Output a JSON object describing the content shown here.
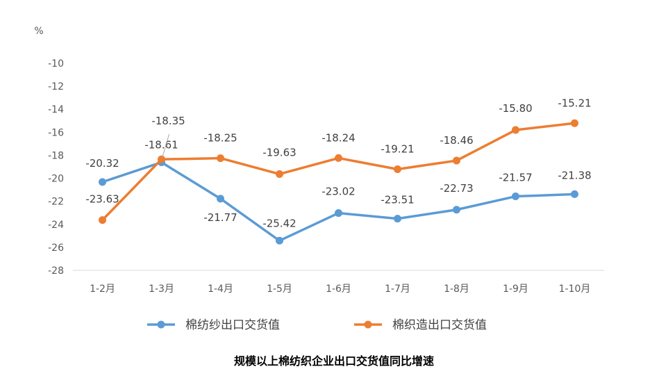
{
  "chart_data": {
    "type": "line",
    "title": "规模以上棉纺织企业出口交货值同比增速",
    "ylabel": "%",
    "xlabel": "",
    "categories": [
      "1-2月",
      "1-3月",
      "1-4月",
      "1-5月",
      "1-6月",
      "1-7月",
      "1-8月",
      "1-9月",
      "1-10月"
    ],
    "ylim": [
      -28,
      -10
    ],
    "yticks": [
      -10,
      -12,
      -14,
      -16,
      -18,
      -20,
      -22,
      -24,
      -26,
      -28
    ],
    "ytick_labels": [
      "-10",
      "-12",
      "-14",
      "-16",
      "-18",
      "-20",
      "-22",
      "-24",
      "-26",
      "-28"
    ],
    "grid": false,
    "legend": "bottom",
    "series": [
      {
        "name": "棉纺纱出口交货值",
        "color": "#5B9BD5",
        "values": [
          -20.32,
          -18.61,
          -21.77,
          -25.42,
          -23.02,
          -23.51,
          -22.73,
          -21.57,
          -21.38
        ],
        "labels": [
          "-20.32",
          "-18.61",
          "-21.77",
          "-25.42",
          "-23.02",
          "-23.51",
          "-22.73",
          "-21.57",
          "-21.38"
        ]
      },
      {
        "name": "棉织造出口交货值",
        "color": "#ED7D31",
        "values": [
          -23.63,
          -18.35,
          -18.25,
          -19.63,
          -18.24,
          -19.21,
          -18.46,
          -15.8,
          -15.21
        ],
        "labels": [
          "-23.63",
          "-18.35",
          "-18.25",
          "-19.63",
          "-18.24",
          "-19.21",
          "-18.46",
          "-15.80",
          "-15.21"
        ]
      }
    ]
  }
}
